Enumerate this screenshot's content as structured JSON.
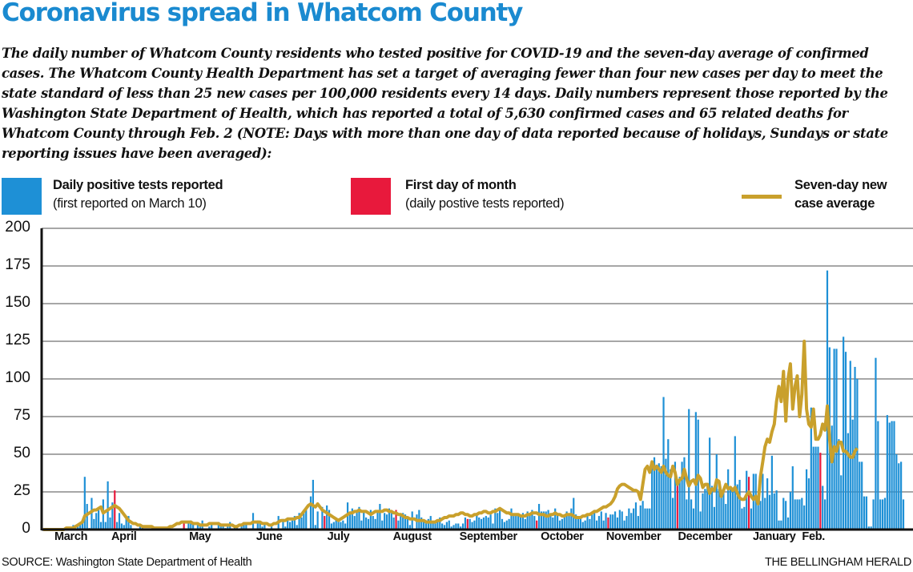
{
  "header": {
    "title": "Coronavirus spread in Whatcom County",
    "subtitle": "The daily number of Whatcom County residents who tested positive for COVID-19 and the seven-day average of confirmed cases. The Whatcom County Health Department has set a target of averaging fewer than four new cases per day to meet the state standard of less than 25 new cases per 100,000 residents every 14 days. Daily numbers represent those reported by the Washington State Department of Health, which has reported a total of 5,630 confirmed cases and 65 related deaths for Whatcom County through Feb. 2 (NOTE: Days with more than one day of data reported because of holidays, Sundays or state reporting issues have been averaged):"
  },
  "legend": {
    "daily": {
      "title": "Daily positive tests reported",
      "sub": "(first reported on March 10)",
      "color": "#1e90d6"
    },
    "first_day": {
      "title": "First day of month",
      "sub": "(daily postive tests reported)",
      "color": "#e8193c"
    },
    "average": {
      "line1": "Seven-day new",
      "line2": "case average",
      "color": "#c9a02c"
    }
  },
  "footer": {
    "source": "SOURCE: Washington State Department of Health",
    "credit": "THE BELLINGHAM HERALD"
  },
  "chart_data": {
    "type": "bar",
    "title": "Coronavirus spread in Whatcom County",
    "xlabel": "",
    "ylabel": "",
    "ylim": [
      0,
      200
    ],
    "yticks": [
      0,
      25,
      50,
      75,
      100,
      125,
      150,
      175,
      200
    ],
    "grid": true,
    "legend_position": "top",
    "start_date": "March 1",
    "end_date": "Feb. 2",
    "month_labels": [
      {
        "label": "March",
        "day_index": 12
      },
      {
        "label": "April",
        "day_index": 35
      },
      {
        "label": "May",
        "day_index": 68
      },
      {
        "label": "June",
        "day_index": 98
      },
      {
        "label": "July",
        "day_index": 128
      },
      {
        "label": "August",
        "day_index": 160
      },
      {
        "label": "September",
        "day_index": 193
      },
      {
        "label": "October",
        "day_index": 225
      },
      {
        "label": "November",
        "day_index": 256
      },
      {
        "label": "December",
        "day_index": 287
      },
      {
        "label": "January",
        "day_index": 317
      },
      {
        "label": "Feb.",
        "day_index": 334
      }
    ],
    "first_of_month_indices": [
      31,
      61,
      92,
      122,
      153,
      184,
      214,
      245,
      275,
      306,
      337
    ],
    "series": [
      {
        "name": "Daily positive tests reported",
        "values": [
          0,
          0,
          0,
          0,
          0,
          0,
          0,
          0,
          0,
          1,
          0,
          0,
          0,
          3,
          1,
          2,
          4,
          5,
          35,
          17,
          1,
          21,
          7,
          11,
          13,
          5,
          20,
          5,
          32,
          8,
          18,
          26,
          5,
          11,
          4,
          3,
          8,
          9,
          3,
          0,
          0,
          0,
          3,
          2,
          0,
          0,
          0,
          0,
          0,
          0,
          0,
          0,
          0,
          0,
          0,
          0,
          0,
          0,
          0,
          0,
          0,
          4,
          0,
          5,
          6,
          5,
          0,
          3,
          2,
          6,
          0,
          0,
          2,
          3,
          0,
          0,
          5,
          2,
          2,
          1,
          2,
          5,
          0,
          2,
          3,
          0,
          2,
          5,
          5,
          0,
          0,
          11,
          0,
          6,
          5,
          2,
          3,
          0,
          0,
          2,
          0,
          0,
          9,
          0,
          7,
          2,
          8,
          5,
          6,
          9,
          3,
          11,
          8,
          13,
          14,
          0,
          22,
          33,
          3,
          12,
          0,
          15,
          9,
          16,
          13,
          4,
          5,
          8,
          6,
          5,
          6,
          4,
          18,
          12,
          14,
          9,
          12,
          15,
          6,
          12,
          8,
          7,
          13,
          9,
          7,
          12,
          17,
          6,
          11,
          10,
          14,
          11,
          8,
          13,
          6,
          9,
          11,
          10,
          8,
          3,
          12,
          0,
          10,
          13,
          8,
          6,
          6,
          7,
          9,
          5,
          4,
          6,
          8,
          4,
          3,
          5,
          6,
          2,
          3,
          4,
          4,
          2,
          4,
          8,
          7,
          7,
          5,
          6,
          11,
          8,
          7,
          8,
          9,
          8,
          10,
          4,
          14,
          11,
          13,
          7,
          5,
          6,
          7,
          14,
          9,
          10,
          9,
          8,
          11,
          7,
          12,
          10,
          13,
          9,
          6,
          17,
          12,
          12,
          12,
          13,
          9,
          8,
          14,
          10,
          6,
          7,
          9,
          12,
          10,
          14,
          21,
          10,
          8,
          9,
          5,
          6,
          9,
          7,
          10,
          13,
          6,
          9,
          12,
          6,
          11,
          8,
          10,
          10,
          12,
          8,
          13,
          12,
          6,
          9,
          14,
          11,
          14,
          18,
          9,
          16,
          19,
          14,
          14,
          14,
          45,
          48,
          43,
          44,
          42,
          88,
          47,
          60,
          40,
          21,
          45,
          33,
          35,
          45,
          48,
          20,
          80,
          20,
          14,
          78,
          73,
          12,
          24,
          27,
          31,
          61,
          29,
          15,
          50,
          27,
          23,
          27,
          17,
          40,
          28,
          25,
          62,
          30,
          33,
          14,
          15,
          39,
          35,
          14,
          37,
          37,
          22,
          19,
          37,
          21,
          34,
          23,
          49,
          24,
          26,
          6,
          6,
          21,
          19,
          8,
          25,
          42,
          20,
          20,
          20,
          21,
          16,
          40,
          34,
          81,
          55,
          55,
          55,
          51,
          29,
          20,
          172,
          121,
          69,
          120,
          120,
          60,
          36,
          128,
          118,
          64,
          112,
          73,
          108,
          100,
          45,
          45,
          22,
          22,
          2,
          2,
          20,
          114,
          72,
          20,
          20,
          21,
          76,
          71,
          72,
          72,
          50,
          44,
          45,
          20
        ]
      },
      {
        "name": "Seven-day new case average",
        "values": [
          0,
          0,
          0,
          0,
          0,
          0,
          0,
          0,
          0,
          0,
          1,
          1,
          1,
          1,
          2,
          3,
          4,
          5,
          9,
          10,
          11,
          12,
          13,
          13,
          14,
          15,
          11,
          12,
          13,
          14,
          15,
          16,
          15,
          14,
          12,
          10,
          8,
          6,
          5,
          4,
          4,
          3,
          3,
          2,
          2,
          2,
          2,
          2,
          1,
          1,
          1,
          1,
          1,
          1,
          1,
          2,
          2,
          3,
          4,
          4,
          5,
          5,
          5,
          5,
          5,
          4,
          4,
          4,
          3,
          3,
          3,
          3,
          4,
          4,
          4,
          4,
          4,
          3,
          3,
          3,
          3,
          3,
          3,
          2,
          2,
          3,
          3,
          4,
          4,
          4,
          4,
          5,
          5,
          5,
          5,
          4,
          4,
          4,
          3,
          3,
          4,
          4,
          5,
          6,
          6,
          6,
          7,
          7,
          7,
          7,
          8,
          8,
          10,
          12,
          14,
          16,
          17,
          16,
          15,
          17,
          15,
          13,
          12,
          11,
          10,
          9,
          8,
          7,
          6,
          7,
          8,
          9,
          10,
          11,
          11,
          12,
          12,
          13,
          12,
          12,
          12,
          11,
          10,
          11,
          12,
          12,
          12,
          12,
          13,
          13,
          12,
          12,
          11,
          11,
          10,
          10,
          9,
          8,
          8,
          7,
          7,
          7,
          6,
          6,
          6,
          6,
          5,
          5,
          5,
          5,
          5,
          6,
          6,
          7,
          8,
          8,
          9,
          9,
          9,
          10,
          10,
          11,
          11,
          10,
          10,
          9,
          9,
          10,
          10,
          11,
          11,
          12,
          12,
          11,
          11,
          12,
          12,
          13,
          14,
          13,
          12,
          11,
          11,
          10,
          10,
          10,
          10,
          9,
          9,
          9,
          10,
          10,
          11,
          11,
          11,
          10,
          10,
          10,
          9,
          9,
          10,
          10,
          11,
          10,
          10,
          9,
          9,
          10,
          10,
          10,
          9,
          8,
          8,
          8,
          9,
          9,
          10,
          10,
          11,
          12,
          12,
          13,
          14,
          15,
          15,
          16,
          17,
          19,
          22,
          27,
          29,
          30,
          30,
          29,
          28,
          27,
          26,
          26,
          25,
          20,
          30,
          40,
          42,
          38,
          45,
          40,
          42,
          40,
          38,
          42,
          38,
          36,
          35,
          42,
          38,
          30,
          33,
          34,
          40,
          34,
          29,
          32,
          33,
          30,
          36,
          34,
          28,
          30,
          30,
          24,
          27,
          26,
          33,
          32,
          22,
          26,
          30,
          27,
          28,
          26,
          28,
          24,
          21,
          20,
          20,
          23,
          25,
          22,
          20,
          22,
          17,
          35,
          45,
          55,
          60,
          58,
          65,
          70,
          85,
          95,
          85,
          105,
          72,
          100,
          110,
          80,
          95,
          102,
          75,
          90,
          125,
          80,
          70,
          68,
          80,
          60,
          60,
          63,
          70,
          66,
          82,
          60,
          45,
          55,
          52,
          58,
          58,
          52,
          52,
          50,
          48,
          48,
          52,
          54
        ]
      }
    ]
  }
}
